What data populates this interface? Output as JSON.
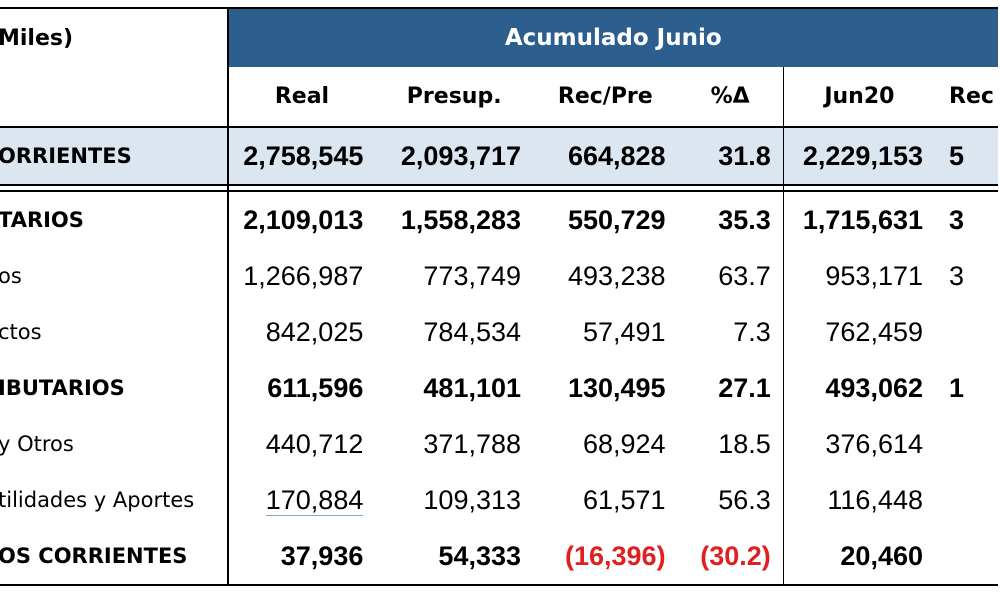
{
  "header": {
    "units_label": "Miles)",
    "group_title": "Acumulado Junio",
    "columns": [
      "Real",
      "Presup.",
      "Rec/Pre",
      "%Δ",
      "Jun20",
      "Rec"
    ]
  },
  "rows": [
    {
      "label": "ORRIENTES",
      "values": [
        "2,758,545",
        "2,093,717",
        "664,828",
        "31.8",
        "2,229,153",
        "5"
      ],
      "style": "total"
    },
    {
      "label": "TARIOS",
      "values": [
        "2,109,013",
        "1,558,283",
        "550,729",
        "35.3",
        "1,715,631",
        "3"
      ],
      "style": "bold"
    },
    {
      "label": "os",
      "values": [
        "1,266,987",
        "773,749",
        "493,238",
        "63.7",
        "953,171",
        "3"
      ],
      "style": "normal"
    },
    {
      "label": "ctos",
      "values": [
        "842,025",
        "784,534",
        "57,491",
        "7.3",
        "762,459",
        ""
      ],
      "style": "normal"
    },
    {
      "label": "IBUTARIOS",
      "values": [
        "611,596",
        "481,101",
        "130,495",
        "27.1",
        "493,062",
        "1"
      ],
      "style": "bold"
    },
    {
      "label": "y Otros",
      "values": [
        "440,712",
        "371,788",
        "68,924",
        "18.5",
        "376,614",
        ""
      ],
      "style": "normal"
    },
    {
      "label": "tilidades y Aportes",
      "values": [
        "170,884",
        "109,313",
        "61,571",
        "56.3",
        "116,448",
        ""
      ],
      "style": "normal"
    },
    {
      "label": "OS CORRIENTES",
      "values": [
        "37,936",
        "54,333",
        "(16,396)",
        "(30.2)",
        "20,460",
        ""
      ],
      "style": "bold"
    }
  ],
  "colors": {
    "banner": "#2c5f8d",
    "total_row": "#dce6f1",
    "negative": "#e02020"
  }
}
